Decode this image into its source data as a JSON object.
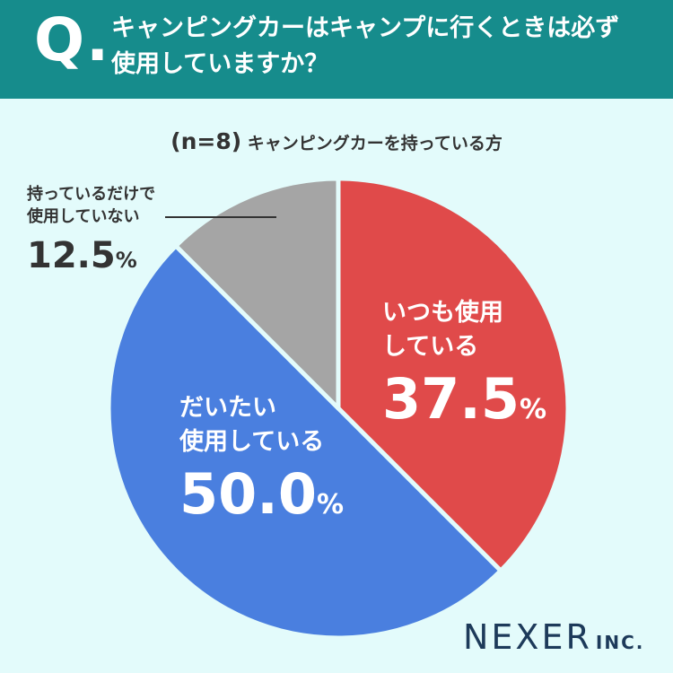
{
  "header": {
    "q_mark": "Q.",
    "question_line1": "キャンピングカーはキャンプに行くときは必ず",
    "question_line2": "使用していますか？"
  },
  "subtitle": {
    "n_label": "(n=8)",
    "text": "キャンピングカーを持っている方"
  },
  "chart_data": {
    "type": "pie",
    "slices": [
      {
        "label_line1": "いつも使用",
        "label_line2": "している",
        "value": 37.5,
        "value_text": "37.5",
        "color": "#e04a4a"
      },
      {
        "label_line1": "だいたい",
        "label_line2": "使用している",
        "value": 50.0,
        "value_text": "50.0",
        "color": "#4a7fdf"
      },
      {
        "label_line1": "持っているだけで",
        "label_line2": "使用していない",
        "value": 12.5,
        "value_text": "12.5",
        "color": "#a5a5a5"
      }
    ],
    "percent_sign": "%"
  },
  "logo": {
    "main": "NEXER",
    "inc": "INC."
  }
}
